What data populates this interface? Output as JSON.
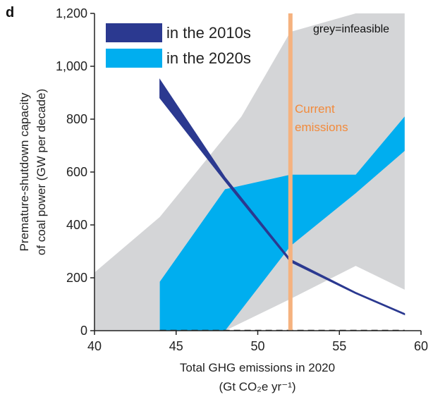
{
  "chart_data": {
    "type": "area",
    "panel_label": "d",
    "xlabel_line1": "Total GHG emissions in 2020",
    "xlabel_line2": "(Gt CO₂e yr⁻¹)",
    "ylabel_line1": "Premature-shutdown capacity",
    "ylabel_line2": "of coal power (GW per decade)",
    "xlim": [
      40,
      60
    ],
    "ylim": [
      0,
      1200
    ],
    "x_ticks": [
      40,
      45,
      50,
      55,
      60
    ],
    "x_tick_labels": [
      "40",
      "45",
      "50",
      "55",
      "60"
    ],
    "y_ticks": [
      0,
      200,
      400,
      600,
      800,
      1000,
      1200
    ],
    "y_tick_labels": [
      "0",
      "200",
      "400",
      "600",
      "800",
      "1,000",
      "1,200"
    ],
    "annotation": "grey=infeasible",
    "reference_line": {
      "x": 52,
      "label_line1": "Current",
      "label_line2": "emissions",
      "color": "#f5b27f"
    },
    "series": [
      {
        "name": "grey=infeasible (upper)",
        "color": "#d4d5d7",
        "polygon": [
          [
            40,
            220
          ],
          [
            44,
            430
          ],
          [
            49,
            810
          ],
          [
            52,
            1130
          ],
          [
            56,
            1200
          ],
          [
            59,
            1200
          ],
          [
            59,
            155
          ],
          [
            56,
            245
          ],
          [
            52,
            120
          ],
          [
            48,
            0
          ],
          [
            40,
            0
          ]
        ]
      },
      {
        "name": "in the 2020s",
        "color": "#00aeef",
        "polygon": [
          [
            44,
            185
          ],
          [
            48,
            535
          ],
          [
            52,
            590
          ],
          [
            56,
            590
          ],
          [
            59,
            810
          ],
          [
            59,
            680
          ],
          [
            56,
            520
          ],
          [
            52,
            320
          ],
          [
            48,
            0
          ],
          [
            44,
            0
          ]
        ]
      },
      {
        "name": "in the 2010s",
        "color": "#2b3990",
        "upper": [
          [
            44,
            950
          ],
          [
            48,
            580
          ],
          [
            52,
            270
          ],
          [
            56,
            145
          ],
          [
            59,
            65
          ]
        ],
        "lower": [
          [
            44,
            880
          ],
          [
            48,
            565
          ],
          [
            52,
            260
          ],
          [
            56,
            140
          ],
          [
            59,
            60
          ]
        ]
      }
    ],
    "legend": [
      {
        "label": "in the 2010s",
        "color": "#2b3990"
      },
      {
        "label": "in the 2020s",
        "color": "#00aeef"
      }
    ],
    "legend_position": "top-left",
    "grid": false
  }
}
